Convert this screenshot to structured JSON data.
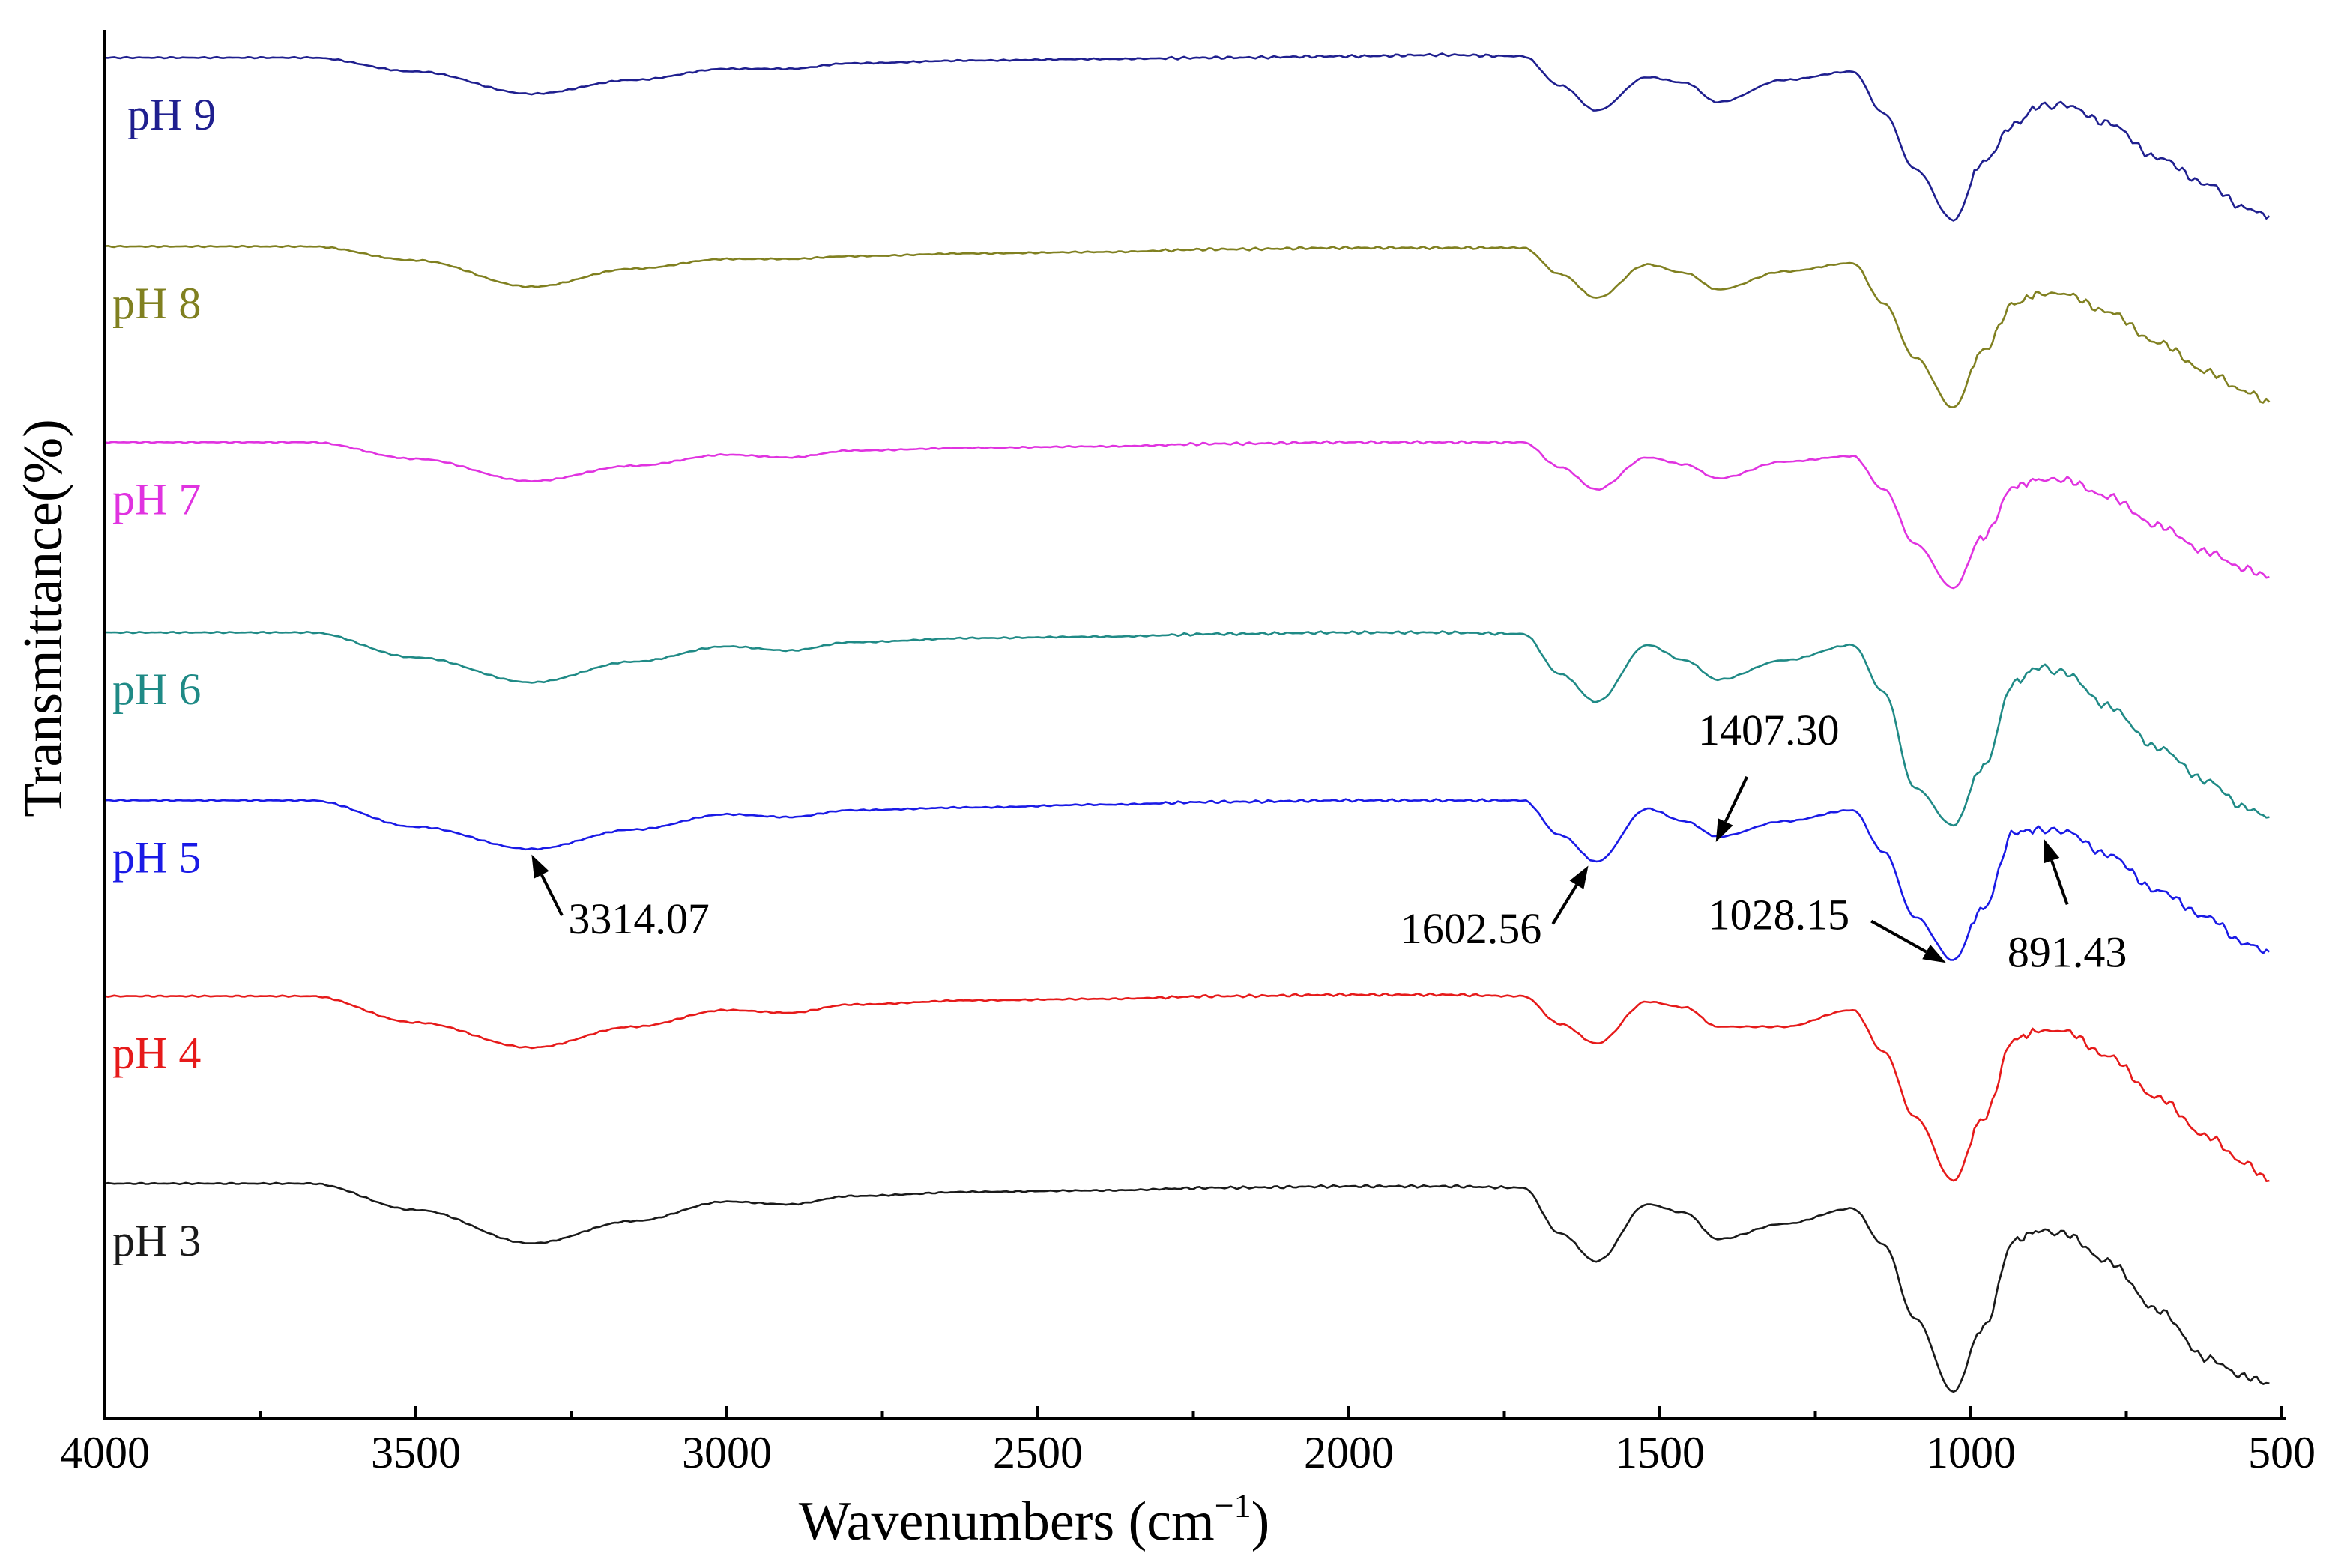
{
  "chart_data": {
    "type": "line",
    "title": "",
    "xlabel": "Wavenumbers (cm",
    "xlabel_sup": "−1",
    "xlabel_close": ")",
    "ylabel": "Transmittance(%)",
    "xlim": [
      4000,
      500
    ],
    "x_reversed": true,
    "x_ticks": [
      "4000",
      "3500",
      "3000",
      "2500",
      "2000",
      "1500",
      "1000",
      "500"
    ],
    "y_ticks_shown": false,
    "grid": false,
    "legend": "inline labels at left of each trace",
    "note": "Traces are vertically offset; y units are arbitrary (0 = bottom of plot, 100 = top).",
    "series": [
      {
        "name": "pH 9",
        "color": "#1f1f8f",
        "x": [
          4000,
          3670,
          3500,
          3314,
          3150,
          3000,
          2900,
          2800,
          2600,
          2400,
          2200,
          2000,
          1850,
          1720,
          1660,
          1602,
          1520,
          1460,
          1407,
          1300,
          1190,
          1140,
          1090,
          1028,
          980,
          930,
          891,
          850,
          780,
          700,
          620,
          560,
          520
        ],
        "y": [
          98.0,
          98.0,
          97.0,
          95.4,
          96.4,
          97.2,
          97.2,
          97.6,
          97.8,
          97.9,
          98.0,
          98.1,
          98.2,
          98.1,
          96.0,
          94.2,
          96.6,
          96.2,
          94.8,
          96.4,
          97.0,
          94.0,
          90.0,
          86.3,
          90.5,
          93.2,
          94.5,
          94.6,
          93.3,
          90.8,
          88.9,
          87.2,
          86.6
        ]
      },
      {
        "name": "pH 8",
        "color": "#808020",
        "x": [
          4000,
          3670,
          3500,
          3314,
          3150,
          3000,
          2900,
          2800,
          2600,
          2400,
          2200,
          2000,
          1850,
          1720,
          1660,
          1602,
          1520,
          1460,
          1407,
          1300,
          1190,
          1140,
          1090,
          1028,
          980,
          930,
          891,
          850,
          780,
          700,
          620,
          560,
          520
        ],
        "y": [
          84.4,
          84.4,
          83.4,
          81.5,
          82.8,
          83.5,
          83.5,
          83.7,
          83.9,
          84.0,
          84.2,
          84.3,
          84.3,
          84.3,
          82.4,
          80.7,
          83.1,
          82.5,
          81.3,
          82.6,
          83.2,
          80.3,
          76.4,
          72.8,
          76.9,
          80.3,
          81.0,
          81.0,
          79.7,
          77.5,
          75.4,
          74.0,
          73.2
        ]
      },
      {
        "name": "pH 7",
        "color": "#e033e0",
        "x": [
          4000,
          3670,
          3500,
          3314,
          3150,
          3000,
          2900,
          2800,
          2600,
          2400,
          2200,
          2000,
          1850,
          1720,
          1660,
          1602,
          1520,
          1460,
          1407,
          1300,
          1190,
          1140,
          1090,
          1028,
          980,
          930,
          891,
          850,
          780,
          700,
          620,
          560,
          520
        ],
        "y": [
          70.3,
          70.3,
          69.1,
          67.5,
          68.6,
          69.4,
          69.2,
          69.7,
          69.9,
          70.0,
          70.2,
          70.3,
          70.3,
          70.3,
          68.5,
          66.9,
          69.2,
          68.7,
          67.7,
          68.9,
          69.3,
          66.9,
          63.0,
          59.8,
          63.5,
          67.1,
          67.6,
          67.6,
          66.4,
          64.3,
          62.4,
          61.2,
          60.6
        ]
      },
      {
        "name": "pH 6",
        "color": "#1f8a86",
        "x": [
          4000,
          3670,
          3500,
          3314,
          3150,
          3000,
          2900,
          2800,
          2600,
          2400,
          2200,
          2000,
          1850,
          1720,
          1660,
          1602,
          1520,
          1460,
          1407,
          1300,
          1190,
          1140,
          1090,
          1028,
          980,
          930,
          891,
          850,
          780,
          700,
          620,
          560,
          520
        ],
        "y": [
          56.6,
          56.6,
          54.8,
          53.0,
          54.5,
          55.6,
          55.3,
          55.9,
          56.2,
          56.3,
          56.5,
          56.6,
          56.6,
          56.5,
          53.6,
          51.6,
          55.7,
          54.6,
          53.2,
          54.6,
          55.7,
          52.3,
          45.4,
          42.7,
          46.9,
          53.0,
          54.1,
          53.7,
          51.3,
          48.3,
          45.9,
          44.0,
          43.3
        ]
      },
      {
        "name": "pH 5",
        "color": "#1a1ae6",
        "x": [
          4000,
          3670,
          3500,
          3314,
          3150,
          3000,
          2900,
          2800,
          2600,
          2400,
          2200,
          2000,
          1850,
          1720,
          1660,
          1602,
          1520,
          1460,
          1407,
          1300,
          1190,
          1140,
          1090,
          1028,
          980,
          930,
          891,
          850,
          780,
          700,
          620,
          560,
          520
        ],
        "y": [
          44.5,
          44.5,
          42.6,
          41.0,
          42.4,
          43.5,
          43.3,
          43.8,
          44.0,
          44.2,
          44.4,
          44.5,
          44.5,
          44.5,
          42.0,
          40.1,
          43.9,
          43.0,
          41.9,
          43.0,
          43.8,
          40.8,
          36.1,
          33.0,
          36.7,
          42.2,
          42.4,
          42.3,
          40.6,
          38.0,
          36.1,
          34.2,
          33.6
        ]
      },
      {
        "name": "pH 4",
        "color": "#e61a1a",
        "x": [
          4000,
          3670,
          3500,
          3314,
          3150,
          3000,
          2900,
          2800,
          2600,
          2400,
          2200,
          2000,
          1850,
          1720,
          1660,
          1602,
          1520,
          1460,
          1407,
          1300,
          1190,
          1140,
          1090,
          1028,
          980,
          930,
          891,
          850,
          780,
          700,
          620,
          560,
          520
        ],
        "y": [
          30.4,
          30.4,
          28.5,
          26.7,
          28.2,
          29.4,
          29.2,
          29.8,
          30.1,
          30.2,
          30.4,
          30.5,
          30.5,
          30.4,
          28.4,
          27.0,
          30.0,
          29.6,
          28.2,
          28.2,
          29.4,
          26.4,
          21.7,
          17.1,
          21.6,
          27.3,
          27.9,
          27.9,
          26.1,
          23.1,
          20.3,
          18.4,
          17.1
        ]
      },
      {
        "name": "pH 3",
        "color": "#1a1a1a",
        "x": [
          4000,
          3670,
          3500,
          3314,
          3150,
          3000,
          2900,
          2800,
          2600,
          2400,
          2200,
          2000,
          1850,
          1720,
          1660,
          1602,
          1520,
          1460,
          1407,
          1300,
          1190,
          1140,
          1090,
          1028,
          980,
          930,
          891,
          850,
          780,
          700,
          620,
          560,
          520
        ],
        "y": [
          16.9,
          16.9,
          15.0,
          12.6,
          14.2,
          15.6,
          15.4,
          16.0,
          16.3,
          16.4,
          16.6,
          16.7,
          16.7,
          16.6,
          13.3,
          11.3,
          15.4,
          14.8,
          12.9,
          14.0,
          15.1,
          12.5,
          7.2,
          1.9,
          6.5,
          12.8,
          13.5,
          13.3,
          11.3,
          7.8,
          4.3,
          3.0,
          2.5
        ]
      }
    ],
    "annotations": [
      {
        "label": "3314.07",
        "peak_x": 3314.07,
        "peak_series": "pH 5",
        "arrow_to_x": 3314,
        "arrow_to_y": 40.6,
        "arrow_from_x": 3265,
        "arrow_from_y": 36.2,
        "text_x": 3255,
        "text_y": 36.0,
        "anchor": "start"
      },
      {
        "label": "1602.56",
        "peak_x": 1602.56,
        "peak_series": "pH 5",
        "arrow_to_x": 1615,
        "arrow_to_y": 39.8,
        "arrow_from_x": 1672,
        "arrow_from_y": 35.6,
        "text_x": 1690,
        "text_y": 35.3,
        "anchor": "end"
      },
      {
        "label": "1407.30",
        "peak_x": 1407.3,
        "peak_series": "pH 5",
        "arrow_to_x": 1410,
        "arrow_to_y": 41.5,
        "arrow_from_x": 1360,
        "arrow_from_y": 46.2,
        "text_x": 1325,
        "text_y": 49.6,
        "anchor": "middle"
      },
      {
        "label": "1028.15",
        "peak_x": 1028.15,
        "peak_series": "pH 5",
        "arrow_to_x": 1040,
        "arrow_to_y": 32.8,
        "arrow_from_x": 1160,
        "arrow_from_y": 35.8,
        "text_x": 1195,
        "text_y": 36.3,
        "anchor": "end"
      },
      {
        "label": "891.43",
        "peak_x": 891.43,
        "peak_series": "pH 5",
        "arrow_to_x": 882,
        "arrow_to_y": 41.7,
        "arrow_from_x": 845,
        "arrow_from_y": 37.0,
        "text_x": 845,
        "text_y": 33.6,
        "anchor": "middle"
      }
    ]
  }
}
